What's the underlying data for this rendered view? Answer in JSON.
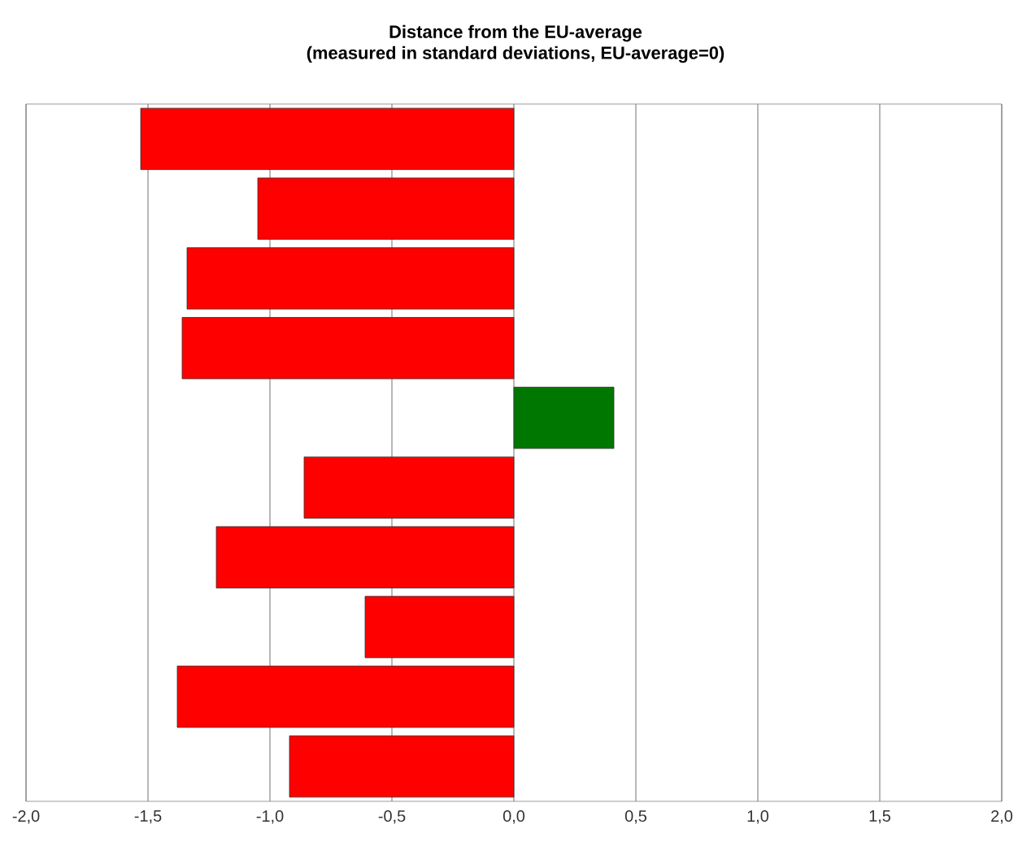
{
  "chart_data": {
    "type": "bar",
    "orientation": "horizontal",
    "title": "Distance from the EU-average",
    "subtitle": "(measured in standard deviations, EU-average=0)",
    "categories": [
      null,
      null,
      null,
      null,
      null,
      null,
      null,
      null,
      null,
      null
    ],
    "values": [
      -1.53,
      -1.05,
      -1.34,
      -1.36,
      0.41,
      -0.86,
      -1.22,
      -0.61,
      -1.38,
      -0.92
    ],
    "colors": [
      "#ff0000",
      "#ff0000",
      "#ff0000",
      "#ff0000",
      "#007700",
      "#ff0000",
      "#ff0000",
      "#ff0000",
      "#ff0000",
      "#ff0000"
    ],
    "xlim": [
      -2,
      2
    ],
    "xticks": [
      {
        "value": -2,
        "label": "-2,0"
      },
      {
        "value": -1.5,
        "label": "-1,5"
      },
      {
        "value": -1,
        "label": "-1,0"
      },
      {
        "value": -0.5,
        "label": "-0,5"
      },
      {
        "value": 0,
        "label": "0,0"
      },
      {
        "value": 0.5,
        "label": "0,5"
      },
      {
        "value": 1,
        "label": "1,0"
      },
      {
        "value": 1.5,
        "label": "1,5"
      },
      {
        "value": 2,
        "label": "2,0"
      }
    ],
    "grid": "x",
    "tick_labels": "x"
  }
}
